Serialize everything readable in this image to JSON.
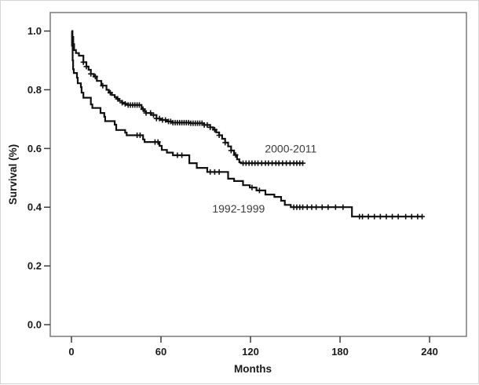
{
  "page": {
    "background": "#ffffff",
    "border_color": "#d4d4d4"
  },
  "chart_data": {
    "type": "line",
    "subtype": "kaplan-meier-step",
    "title": "",
    "xlabel": "Months",
    "ylabel": "Survival (%)",
    "xlim": [
      -14.2,
      264.7
    ],
    "ylim": [
      -0.04,
      1.063
    ],
    "grid": false,
    "legend_position": "none (curves labeled inline on plot)",
    "xticks": [
      {
        "value": 0,
        "label": "0"
      },
      {
        "value": 60,
        "label": "60"
      },
      {
        "value": 120,
        "label": "120"
      },
      {
        "value": 180,
        "label": "180"
      },
      {
        "value": 240,
        "label": "240"
      }
    ],
    "yticks": [
      {
        "value": 1.0,
        "label": "1.0"
      },
      {
        "value": 0.8,
        "label": "0.8"
      },
      {
        "value": 0.6,
        "label": "0.6"
      },
      {
        "value": 0.4,
        "label": "0.4"
      },
      {
        "value": 0.2,
        "label": "0.2"
      },
      {
        "value": 0.0,
        "label": "0.0"
      }
    ],
    "colors": {
      "line": "#111111",
      "frame": "#7a7a7a",
      "tick": "#3c3c3c",
      "tick_text": "#1a1a1a",
      "series_label_text": "#3a3a3a"
    },
    "series": [
      {
        "name": "2000-2011",
        "points": [
          [
            0,
            1.0
          ],
          [
            0.7,
            0.98
          ],
          [
            1.2,
            0.955
          ],
          [
            1.8,
            0.935
          ],
          [
            3,
            0.925
          ],
          [
            5,
            0.916
          ],
          [
            8,
            0.894
          ],
          [
            10,
            0.879
          ],
          [
            11.5,
            0.868
          ],
          [
            13,
            0.854
          ],
          [
            15,
            0.845
          ],
          [
            17,
            0.83
          ],
          [
            20,
            0.814
          ],
          [
            23.5,
            0.8
          ],
          [
            25,
            0.79
          ],
          [
            27,
            0.782
          ],
          [
            29,
            0.775
          ],
          [
            30.5,
            0.769
          ],
          [
            32,
            0.762
          ],
          [
            34,
            0.756
          ],
          [
            36,
            0.752
          ],
          [
            38,
            0.748
          ],
          [
            47,
            0.734
          ],
          [
            49,
            0.727
          ],
          [
            50,
            0.721
          ],
          [
            53.5,
            0.714
          ],
          [
            57,
            0.702
          ],
          [
            59.5,
            0.697
          ],
          [
            64,
            0.692
          ],
          [
            67,
            0.688
          ],
          [
            80,
            0.686
          ],
          [
            89,
            0.68
          ],
          [
            93,
            0.672
          ],
          [
            95,
            0.664
          ],
          [
            97,
            0.655
          ],
          [
            99,
            0.645
          ],
          [
            101,
            0.633
          ],
          [
            103,
            0.62
          ],
          [
            105,
            0.607
          ],
          [
            107,
            0.593
          ],
          [
            109,
            0.578
          ],
          [
            111,
            0.563
          ],
          [
            112.5,
            0.553
          ],
          [
            113.5,
            0.55
          ],
          [
            155,
            0.55
          ]
        ],
        "censor_months": [
          8,
          10,
          13,
          16,
          21,
          26,
          31,
          34,
          36,
          38,
          39.5,
          41,
          42.5,
          44,
          45.5,
          48,
          50,
          53,
          55,
          57,
          59,
          61,
          63,
          65,
          66.5,
          68,
          69.5,
          71,
          72.5,
          74,
          75.5,
          77,
          78.5,
          80,
          81.5,
          83,
          84.5,
          86,
          87.5,
          89,
          91,
          93,
          96,
          99,
          103,
          107,
          110,
          115,
          117,
          119,
          121,
          123,
          125,
          127.5,
          130,
          132,
          134.5,
          137,
          139,
          141.5,
          144,
          146.5,
          149,
          151,
          153,
          155
        ]
      },
      {
        "name": "1992-1999",
        "points": [
          [
            0,
            1.0
          ],
          [
            0.4,
            0.95
          ],
          [
            0.8,
            0.9
          ],
          [
            1.1,
            0.87
          ],
          [
            1.6,
            0.857
          ],
          [
            3.7,
            0.841
          ],
          [
            4.2,
            0.822
          ],
          [
            6.3,
            0.809
          ],
          [
            6.8,
            0.79
          ],
          [
            8,
            0.773
          ],
          [
            13,
            0.75
          ],
          [
            14,
            0.738
          ],
          [
            19.5,
            0.721
          ],
          [
            22,
            0.708
          ],
          [
            22.6,
            0.693
          ],
          [
            29,
            0.681
          ],
          [
            30,
            0.663
          ],
          [
            36,
            0.654
          ],
          [
            37,
            0.645
          ],
          [
            48,
            0.631
          ],
          [
            49,
            0.622
          ],
          [
            59,
            0.609
          ],
          [
            60.5,
            0.595
          ],
          [
            64,
            0.586
          ],
          [
            68,
            0.577
          ],
          [
            79,
            0.55
          ],
          [
            84,
            0.534
          ],
          [
            91,
            0.52
          ],
          [
            105,
            0.497
          ],
          [
            109,
            0.489
          ],
          [
            115,
            0.475
          ],
          [
            119.5,
            0.467
          ],
          [
            124,
            0.457
          ],
          [
            130,
            0.443
          ],
          [
            136,
            0.435
          ],
          [
            140.5,
            0.422
          ],
          [
            143,
            0.408
          ],
          [
            147,
            0.4
          ],
          [
            188,
            0.368
          ],
          [
            235,
            0.368
          ]
        ],
        "censor_months": [
          44,
          46,
          56,
          58,
          71,
          74,
          93,
          96,
          99,
          121,
          126,
          149,
          151,
          153,
          155,
          158,
          161,
          164,
          168,
          172,
          177,
          182,
          193,
          195,
          199,
          203,
          207,
          211,
          215,
          219,
          224,
          228,
          232,
          235
        ]
      }
    ],
    "annotations": [
      {
        "text": "2000-2011",
        "x": 147,
        "y": 0.6
      },
      {
        "text": "1992-1999",
        "x": 112,
        "y": 0.395
      }
    ]
  }
}
